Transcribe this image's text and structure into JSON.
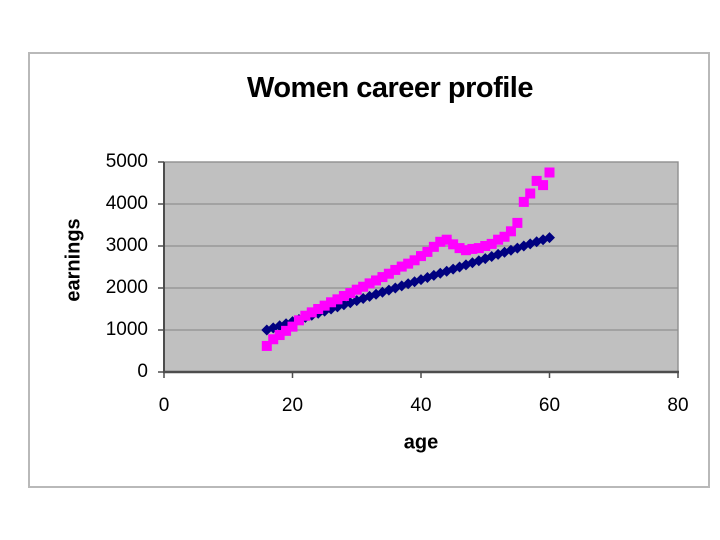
{
  "window": {
    "background": "#ffffff",
    "chart_frame_border": "#b9b9b9"
  },
  "chart_data": {
    "type": "scatter",
    "title": "Women career profile",
    "xlabel": "age",
    "ylabel": "earnings",
    "xlim": [
      0,
      80
    ],
    "ylim": [
      0,
      5000
    ],
    "x_ticks": [
      0,
      20,
      40,
      60,
      80
    ],
    "y_ticks": [
      0,
      1000,
      2000,
      3000,
      4000,
      5000
    ],
    "grid": "horizontal",
    "legend": "none",
    "plot_bg": "#c0c0c0",
    "gridline_color": "#8f8f8f",
    "border_color": "#8f8f8f",
    "axis_color": "#4d4d4d",
    "x": [
      16,
      17,
      18,
      19,
      20,
      21,
      22,
      23,
      24,
      25,
      26,
      27,
      28,
      29,
      30,
      31,
      32,
      33,
      34,
      35,
      36,
      37,
      38,
      39,
      40,
      41,
      42,
      43,
      44,
      45,
      46,
      47,
      48,
      49,
      50,
      51,
      52,
      53,
      54,
      55,
      56,
      57,
      58,
      59,
      60
    ],
    "series": [
      {
        "name": "series-1",
        "marker": "diamond",
        "color": "#000080",
        "values": [
          1000,
          1050,
          1100,
          1150,
          1200,
          1250,
          1300,
          1350,
          1400,
          1450,
          1500,
          1550,
          1600,
          1650,
          1700,
          1750,
          1800,
          1850,
          1900,
          1950,
          2000,
          2050,
          2100,
          2150,
          2200,
          2250,
          2300,
          2350,
          2400,
          2450,
          2500,
          2550,
          2600,
          2650,
          2700,
          2750,
          2800,
          2850,
          2900,
          2950,
          3000,
          3050,
          3100,
          3150,
          3200
        ]
      },
      {
        "name": "series-2",
        "marker": "square",
        "color": "#ff00ff",
        "values": [
          620,
          780,
          880,
          980,
          1080,
          1230,
          1340,
          1420,
          1500,
          1580,
          1660,
          1730,
          1810,
          1880,
          1960,
          2030,
          2110,
          2180,
          2260,
          2340,
          2430,
          2510,
          2580,
          2660,
          2760,
          2860,
          2980,
          3100,
          3150,
          3040,
          2950,
          2900,
          2930,
          2950,
          3000,
          3050,
          3150,
          3220,
          3350,
          3550,
          4050,
          4250,
          4550,
          4450,
          4750
        ]
      }
    ]
  }
}
